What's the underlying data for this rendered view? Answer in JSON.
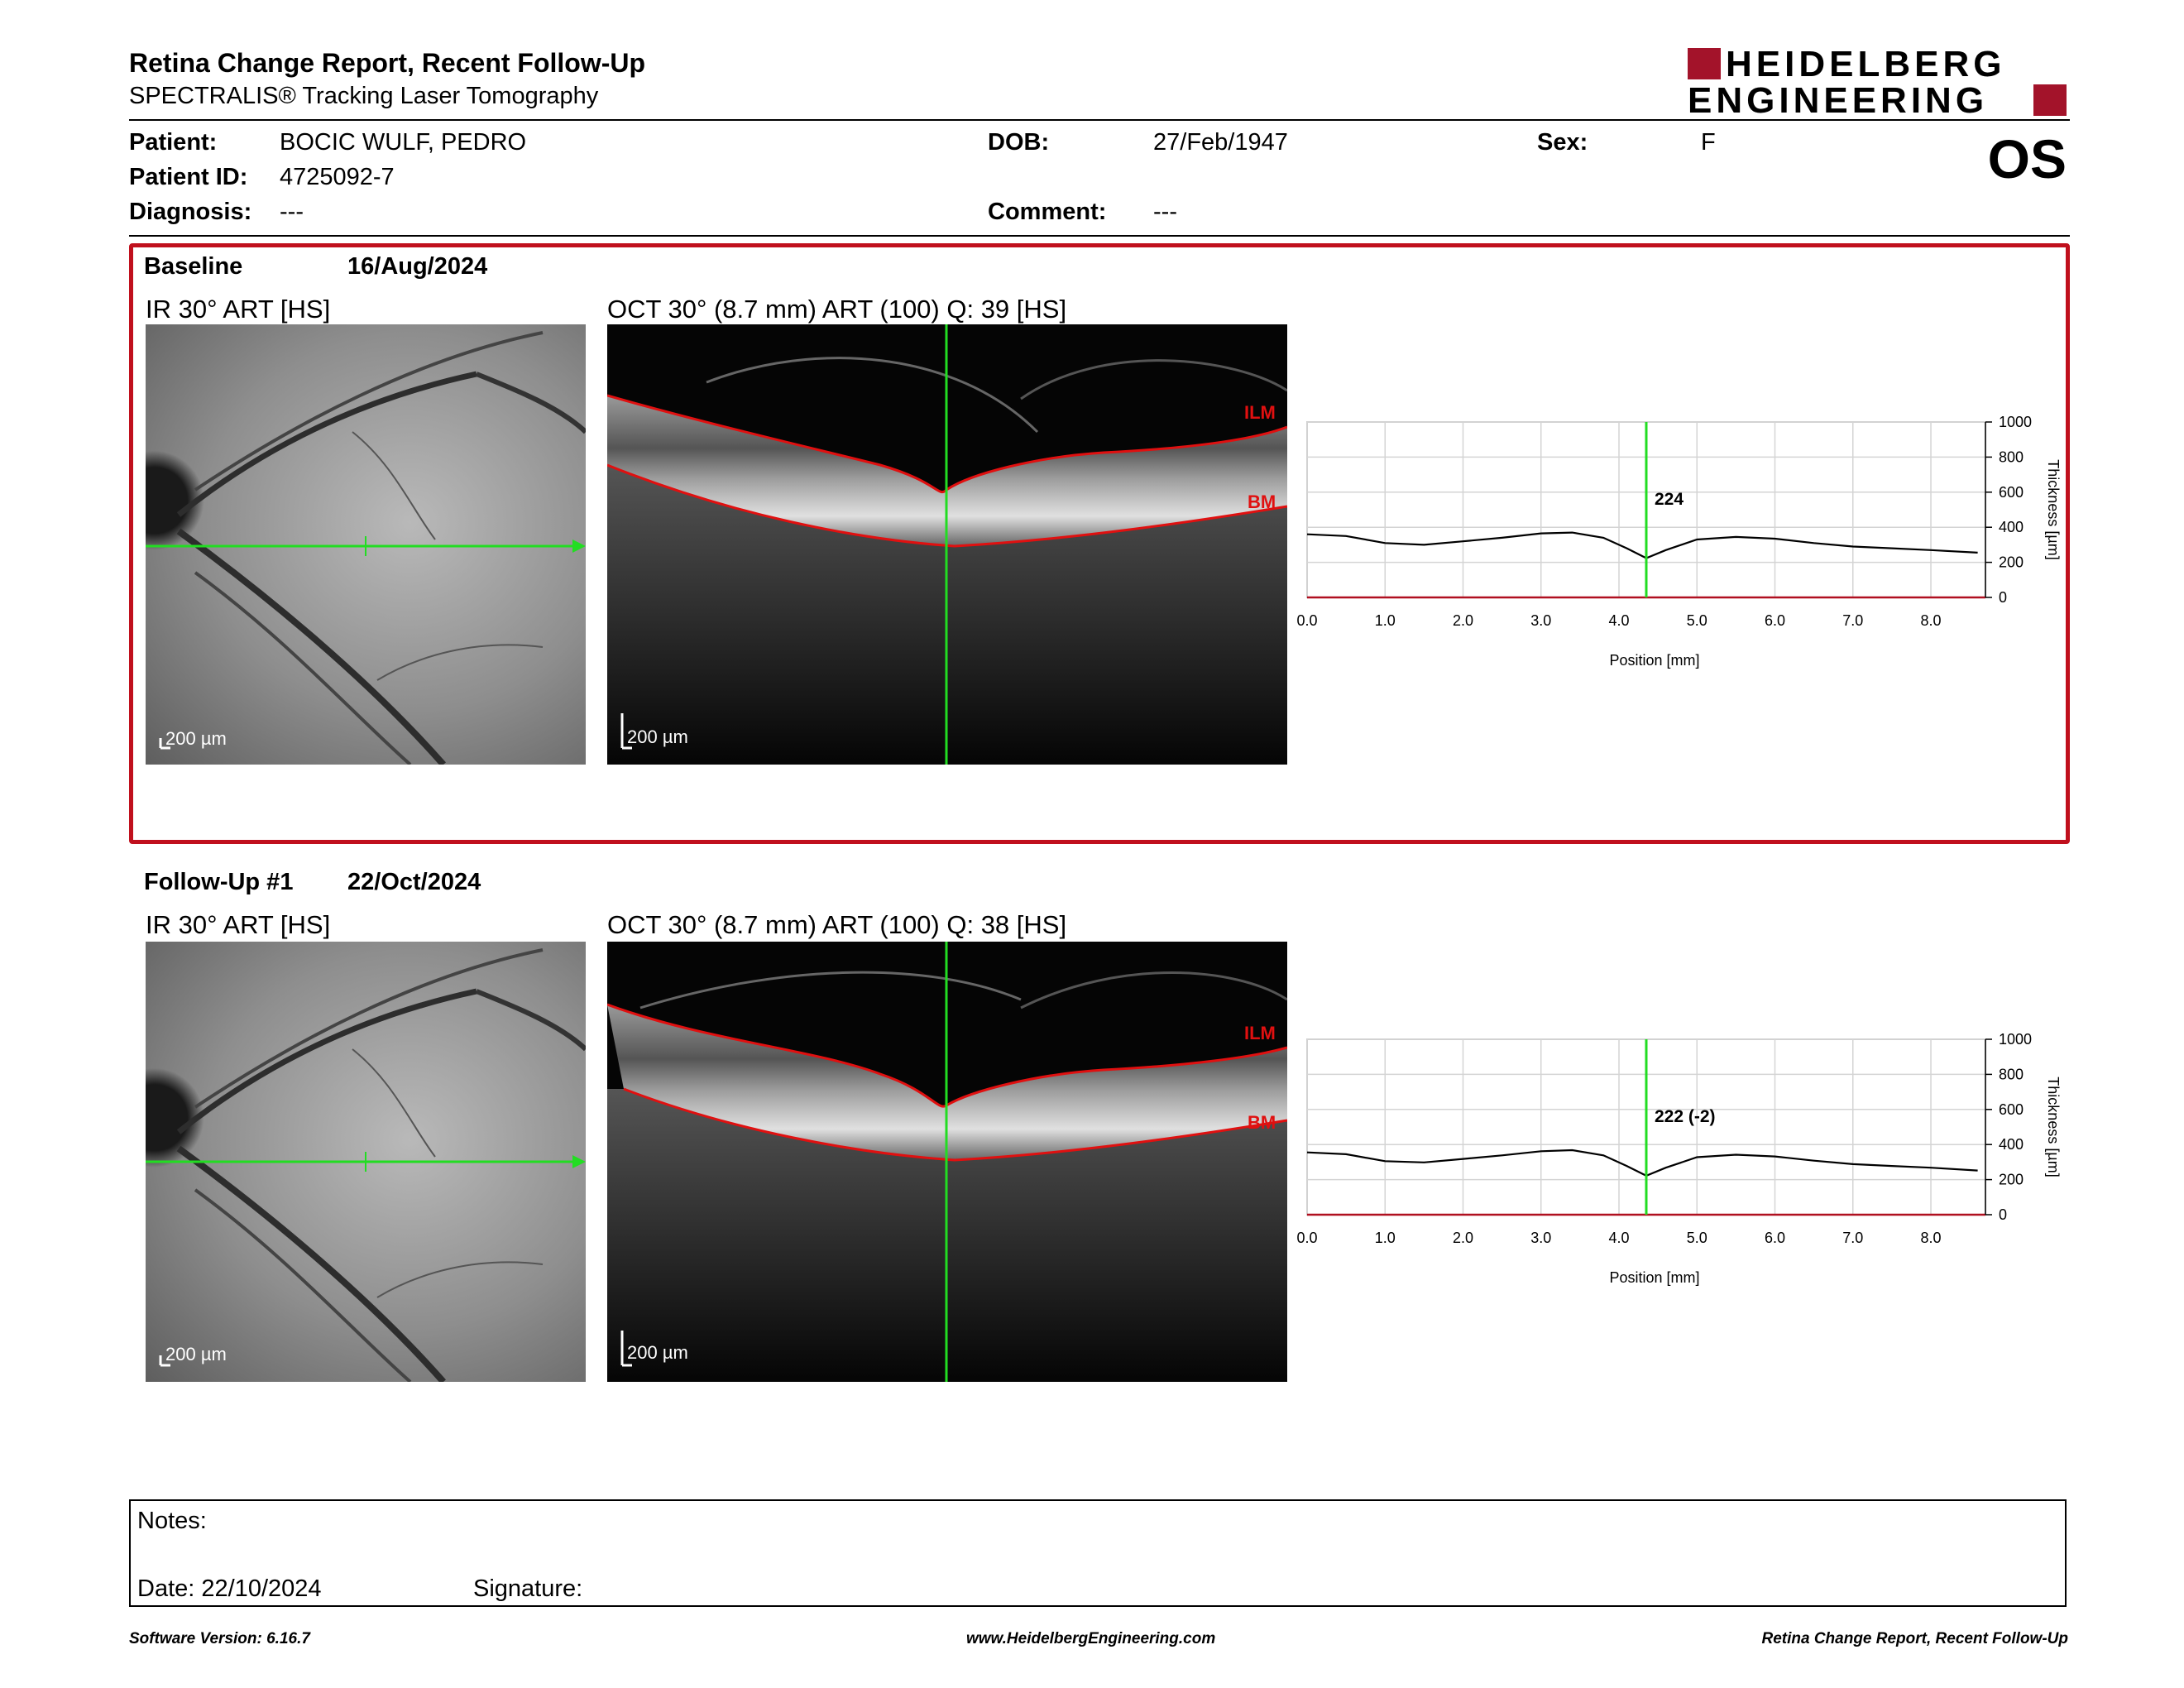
{
  "header": {
    "title": "Retina Change Report, Recent Follow-Up",
    "subtitle": "SPECTRALIS® Tracking Laser Tomography",
    "logo_line1": "HEIDELBERG",
    "logo_line2": "ENGINEERING",
    "eye": "OS"
  },
  "patient": {
    "patient_label": "Patient:",
    "patient_value": "BOCIC WULF, PEDRO",
    "id_label": "Patient ID:",
    "id_value": "4725092-7",
    "diagnosis_label": "Diagnosis:",
    "diagnosis_value": "---",
    "dob_label": "DOB:",
    "dob_value": "27/Feb/1947",
    "comment_label": "Comment:",
    "comment_value": "---",
    "sex_label": "Sex:",
    "sex_value": "F"
  },
  "colors": {
    "accent": "#c0101d",
    "logo": "#a3132a",
    "scan_line": "#22dd22",
    "layer_line": "#e01010"
  },
  "exams": [
    {
      "label": "Baseline",
      "date": "16/Aug/2024",
      "ir_title": "IR 30° ART [HS]",
      "oct_title": "OCT 30° (8.7 mm) ART (100) Q: 39 [HS]",
      "ir_scale": "200 µm",
      "oct_scale": "200 µm",
      "ilm_label": "ILM",
      "bm_label": "BM",
      "readout": "224"
    },
    {
      "label": "Follow-Up #1",
      "date": "22/Oct/2024",
      "ir_title": "IR 30° ART [HS]",
      "oct_title": "OCT 30° (8.7 mm) ART (100) Q: 38 [HS]",
      "ir_scale": "200 µm",
      "oct_scale": "200 µm",
      "ilm_label": "ILM",
      "bm_label": "BM",
      "readout": "222 (-2)"
    }
  ],
  "chart_data": [
    {
      "type": "line",
      "title": "",
      "xlabel": "Position [mm]",
      "ylabel": "Thickness [µm]",
      "xlim": [
        0,
        8.7
      ],
      "ylim": [
        0,
        1000
      ],
      "x_ticks": [
        "0.0",
        "1.0",
        "2.0",
        "3.0",
        "4.0",
        "5.0",
        "6.0",
        "7.0",
        "8.0"
      ],
      "y_ticks": [
        "0",
        "200",
        "400",
        "600",
        "800",
        "1000"
      ],
      "marker_x": 4.35,
      "marker_label": "224",
      "grid": true,
      "series": [
        {
          "x": [
            0.0,
            0.5,
            1.0,
            1.5,
            2.0,
            2.5,
            3.0,
            3.4,
            3.8,
            4.1,
            4.35,
            4.6,
            5.0,
            5.5,
            6.0,
            6.5,
            7.0,
            7.5,
            8.0,
            8.6
          ],
          "values": [
            360,
            350,
            310,
            300,
            320,
            340,
            365,
            370,
            340,
            280,
            224,
            270,
            330,
            345,
            335,
            310,
            290,
            280,
            270,
            255
          ]
        }
      ]
    },
    {
      "type": "line",
      "title": "",
      "xlabel": "Position [mm]",
      "ylabel": "Thickness [µm]",
      "xlim": [
        0,
        8.7
      ],
      "ylim": [
        0,
        1000
      ],
      "x_ticks": [
        "0.0",
        "1.0",
        "2.0",
        "3.0",
        "4.0",
        "5.0",
        "6.0",
        "7.0",
        "8.0"
      ],
      "y_ticks": [
        "0",
        "200",
        "400",
        "600",
        "800",
        "1000"
      ],
      "marker_x": 4.35,
      "marker_label": "222 (-2)",
      "grid": true,
      "series": [
        {
          "x": [
            0.0,
            0.5,
            1.0,
            1.5,
            2.0,
            2.5,
            3.0,
            3.4,
            3.8,
            4.1,
            4.35,
            4.6,
            5.0,
            5.5,
            6.0,
            6.5,
            7.0,
            7.5,
            8.0,
            8.6
          ],
          "values": [
            355,
            345,
            305,
            298,
            318,
            338,
            362,
            368,
            338,
            278,
            222,
            268,
            328,
            342,
            332,
            308,
            288,
            278,
            268,
            252
          ]
        }
      ]
    }
  ],
  "notes": {
    "notes_label": "Notes:",
    "date_label": "Date: 22/10/2024",
    "signature_label": "Signature:"
  },
  "footer": {
    "left": "Software Version: 6.16.7",
    "center": "www.HeidelbergEngineering.com",
    "right": "Retina Change Report, Recent Follow-Up"
  }
}
